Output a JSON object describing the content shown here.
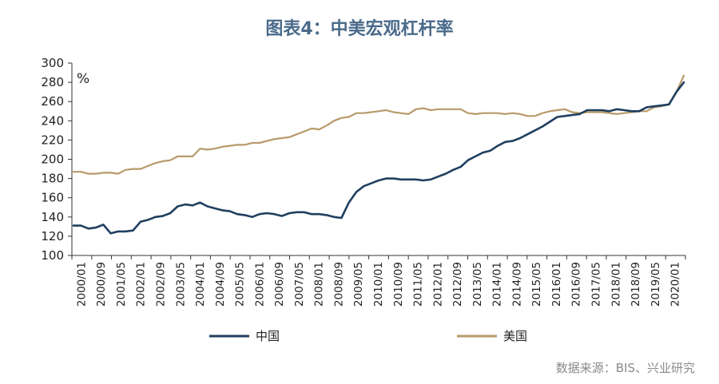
{
  "chart_data": {
    "type": "line",
    "title": "图表4：中美宏观杠杆率",
    "unit_label": "%",
    "ylim": [
      100,
      300
    ],
    "yticks": [
      100,
      120,
      140,
      160,
      180,
      200,
      220,
      240,
      260,
      280,
      300
    ],
    "x_tick_labels": [
      "2000/01",
      "2000/09",
      "2001/05",
      "2002/01",
      "2002/09",
      "2003/05",
      "2004/01",
      "2004/09",
      "2005/05",
      "2006/01",
      "2006/09",
      "2007/05",
      "2008/01",
      "2008/09",
      "2009/05",
      "2010/01",
      "2010/09",
      "2011/05",
      "2012/01",
      "2012/09",
      "2013/05",
      "2014/01",
      "2014/09",
      "2015/05",
      "2016/01",
      "2016/09",
      "2017/05",
      "2018/01",
      "2018/09",
      "2019/05",
      "2020/01"
    ],
    "grid": false,
    "legend_position": "bottom",
    "colors": {
      "china": "#1f3f5f",
      "usa": "#b89a6a"
    },
    "series": [
      {
        "name": "中国",
        "values": [
          131,
          131,
          128,
          129,
          132,
          123,
          125,
          125,
          126,
          135,
          137,
          140,
          141,
          144,
          151,
          153,
          152,
          155,
          151,
          149,
          147,
          146,
          143,
          142,
          140,
          143,
          144,
          143,
          141,
          144,
          145,
          145,
          143,
          143,
          142,
          140,
          139,
          155,
          166,
          172,
          175,
          178,
          180,
          180,
          179,
          179,
          179,
          178,
          179,
          182,
          185,
          189,
          192,
          199,
          203,
          207,
          209,
          214,
          218,
          219,
          222,
          226,
          230,
          234,
          239,
          244,
          245,
          246,
          247,
          251,
          251,
          251,
          250,
          252,
          251,
          250,
          250,
          254,
          255,
          256,
          257,
          270,
          280
        ]
      },
      {
        "name": "美国",
        "values": [
          187,
          187,
          185,
          185,
          186,
          186,
          185,
          189,
          190,
          190,
          193,
          196,
          198,
          199,
          203,
          203,
          203,
          211,
          210,
          211,
          213,
          214,
          215,
          215,
          217,
          217,
          219,
          221,
          222,
          223,
          226,
          229,
          232,
          231,
          235,
          240,
          243,
          244,
          248,
          248,
          249,
          250,
          251,
          249,
          248,
          247,
          252,
          253,
          251,
          252,
          252,
          252,
          252,
          248,
          247,
          248,
          248,
          248,
          247,
          248,
          247,
          245,
          245,
          248,
          250,
          251,
          252,
          249,
          248,
          249,
          249,
          249,
          248,
          247,
          248,
          249,
          250,
          250,
          254,
          255,
          257,
          270,
          287
        ]
      }
    ]
  },
  "source_note": "数据来源：BIS、兴业研究"
}
